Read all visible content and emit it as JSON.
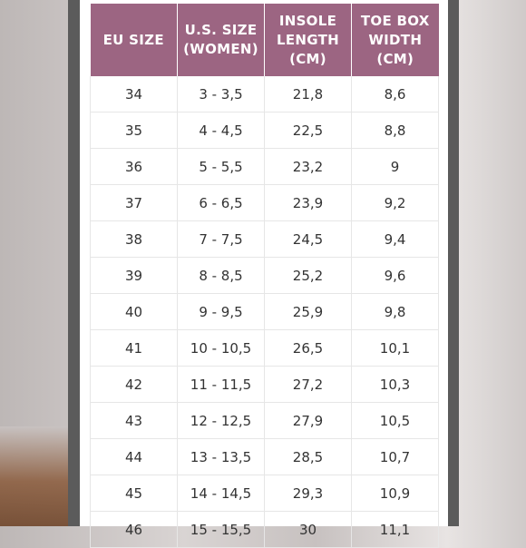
{
  "table": {
    "headers": [
      [
        "EU SIZE"
      ],
      [
        "U.S. SIZE",
        "(WOMEN)"
      ],
      [
        "INSOLE",
        "LENGTH",
        "(CM)"
      ],
      [
        "TOE BOX",
        "WIDTH",
        "(CM)"
      ]
    ],
    "rows": [
      [
        "34",
        "3 - 3,5",
        "21,8",
        "8,6"
      ],
      [
        "35",
        "4 - 4,5",
        "22,5",
        "8,8"
      ],
      [
        "36",
        "5 - 5,5",
        "23,2",
        "9"
      ],
      [
        "37",
        "6 - 6,5",
        "23,9",
        "9,2"
      ],
      [
        "38",
        "7 - 7,5",
        "24,5",
        "9,4"
      ],
      [
        "39",
        "8 - 8,5",
        "25,2",
        "9,6"
      ],
      [
        "40",
        "9 - 9,5",
        "25,9",
        "9,8"
      ],
      [
        "41",
        "10 - 10,5",
        "26,5",
        "10,1"
      ],
      [
        "42",
        "11 - 11,5",
        "27,2",
        "10,3"
      ],
      [
        "43",
        "12 - 12,5",
        "27,9",
        "10,5"
      ],
      [
        "44",
        "13 - 13,5",
        "28,5",
        "10,7"
      ],
      [
        "45",
        "14 - 14,5",
        "29,3",
        "10,9"
      ],
      [
        "46",
        "15 - 15,5",
        "30",
        "11,1"
      ]
    ]
  },
  "colors": {
    "header_bg": "#9c6582",
    "header_text": "#ffffff",
    "frame": "#5b5b5b"
  }
}
